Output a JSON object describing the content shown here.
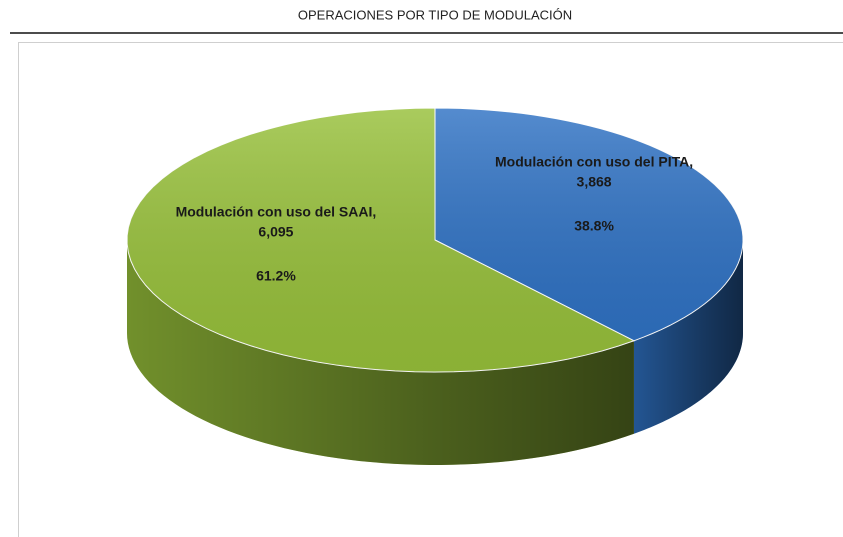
{
  "chart_data": {
    "type": "pie3d",
    "title": "OPERACIONES POR TIPO DE MODULACIÓN",
    "categories": [
      "Modulación con uso del PITA,",
      "Modulación con uso del SAAI,"
    ],
    "values": [
      3868,
      6095
    ],
    "value_labels": [
      "3,868",
      "6,095"
    ],
    "percentages": [
      38.8,
      61.2
    ],
    "percentage_labels": [
      "38.8%",
      "61.2%"
    ],
    "colors": [
      "#2f72c4",
      "#97c03a"
    ]
  }
}
